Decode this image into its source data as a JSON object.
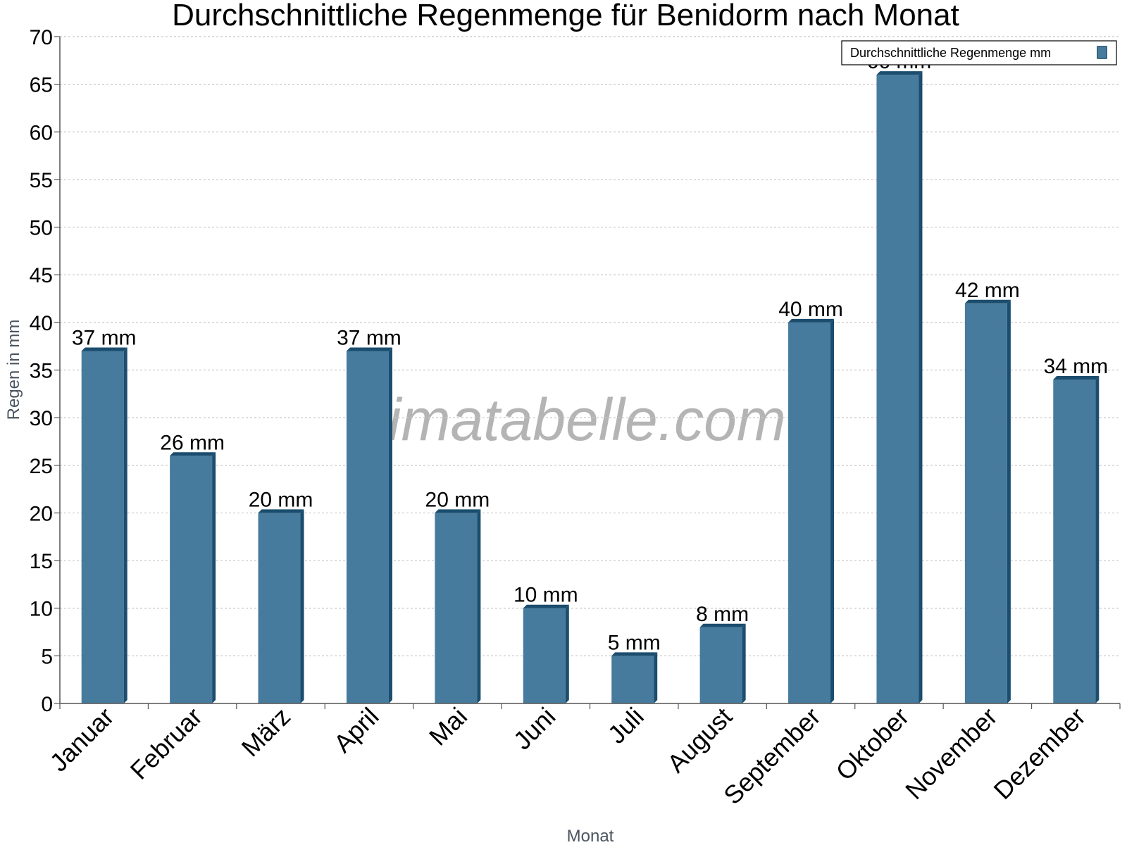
{
  "chart_data": {
    "type": "bar",
    "title": "Durchschnittliche Regenmenge für Benidorm nach Monat",
    "xlabel": "Monat",
    "ylabel": "Regen in mm",
    "categories": [
      "Januar",
      "Februar",
      "März",
      "April",
      "Mai",
      "Juni",
      "Juli",
      "August",
      "September",
      "Oktober",
      "November",
      "Dezember"
    ],
    "series": [
      {
        "name": "Durchschnittliche Regenmenge mm",
        "values": [
          37,
          26,
          20,
          37,
          20,
          10,
          5,
          8,
          40,
          66,
          42,
          34
        ],
        "labels": [
          "37 mm",
          "26 mm",
          "20 mm",
          "37 mm",
          "20 mm",
          "10 mm",
          "5 mm",
          "8 mm",
          "40 mm",
          "66 mm",
          "42 mm",
          "34 mm"
        ]
      }
    ],
    "ylim": [
      0,
      70
    ],
    "yticks": [
      0,
      5,
      10,
      15,
      20,
      25,
      30,
      35,
      40,
      45,
      50,
      55,
      60,
      65,
      70
    ],
    "grid": true,
    "legend_position": "top-right",
    "watermark": "klimatabelle.com",
    "colors": {
      "bar": "#467b9d",
      "bar_edge": "#1b4d6e",
      "grid": "#c8c8c8",
      "axis": "#555555"
    }
  }
}
